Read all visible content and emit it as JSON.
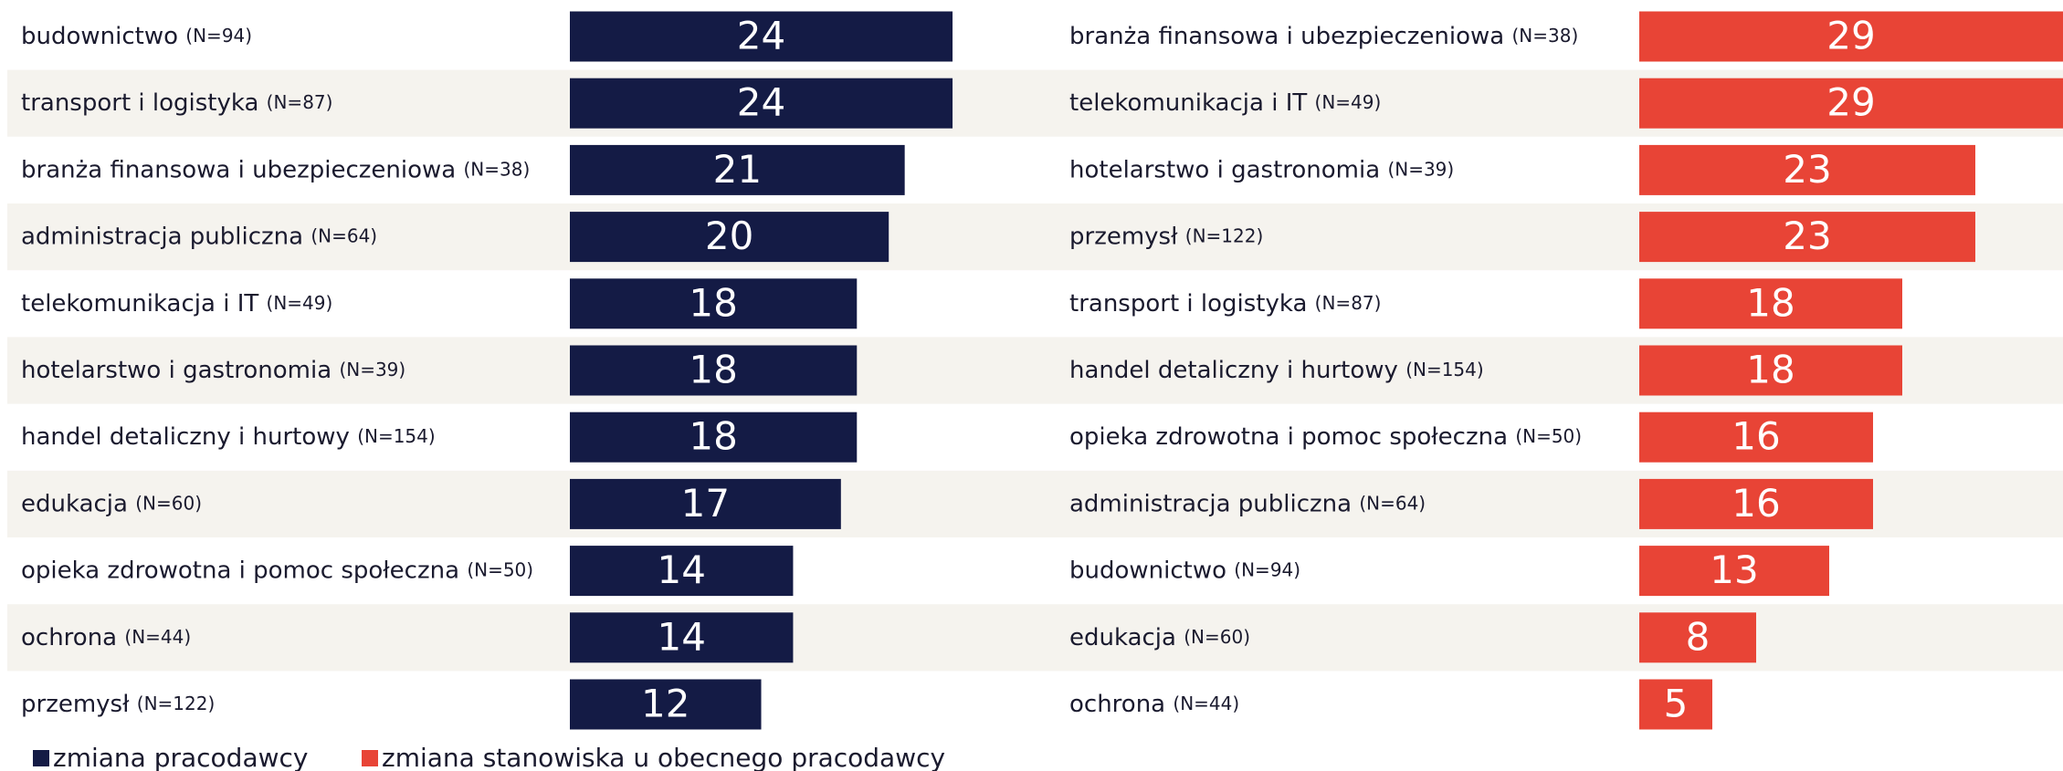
{
  "chart_data": [
    {
      "type": "bar",
      "orientation": "horizontal",
      "categories": [
        "budownictwo",
        "transport i logistyka",
        "branża finansowa i ubezpieczeniowa",
        "administracja publiczna",
        "telekomunikacja i IT",
        "hotelarstwo i gastronomia",
        "handel detaliczny i hurtowy",
        "edukacja",
        "opieka zdrowotna i pomoc społeczna",
        "ochrona",
        "przemysł"
      ],
      "sample_sizes": [
        "(N=94)",
        "(N=87)",
        "(N=38)",
        "(N=64)",
        "(N=49)",
        "(N=39)",
        "(N=154)",
        "(N=60)",
        "(N=50)",
        "(N=44)",
        "(N=122)"
      ],
      "series": [
        {
          "name": "zmiana pracodawcy",
          "color": "#141b45",
          "values": [
            24,
            24,
            21,
            20,
            18,
            18,
            18,
            17,
            14,
            14,
            12
          ]
        }
      ]
    },
    {
      "type": "bar",
      "orientation": "horizontal",
      "categories": [
        "branża finansowa i ubezpieczeniowa",
        "telekomunikacja i IT",
        "hotelarstwo i gastronomia",
        "przemysł",
        "transport i logistyka",
        "handel detaliczny i hurtowy",
        "opieka zdrowotna i pomoc społeczna",
        "administracja publiczna",
        "budownictwo",
        "edukacja",
        "ochrona"
      ],
      "sample_sizes": [
        "(N=38)",
        "(N=49)",
        "(N=39)",
        "(N=122)",
        "(N=87)",
        "(N=154)",
        "(N=50)",
        "(N=64)",
        "(N=94)",
        "(N=60)",
        "(N=44)"
      ],
      "series": [
        {
          "name": "zmiana stanowiska u obecnego pracodawcy",
          "color": "#e84436",
          "values": [
            29,
            29,
            23,
            23,
            18,
            18,
            16,
            16,
            13,
            8,
            5
          ]
        }
      ]
    }
  ]
}
